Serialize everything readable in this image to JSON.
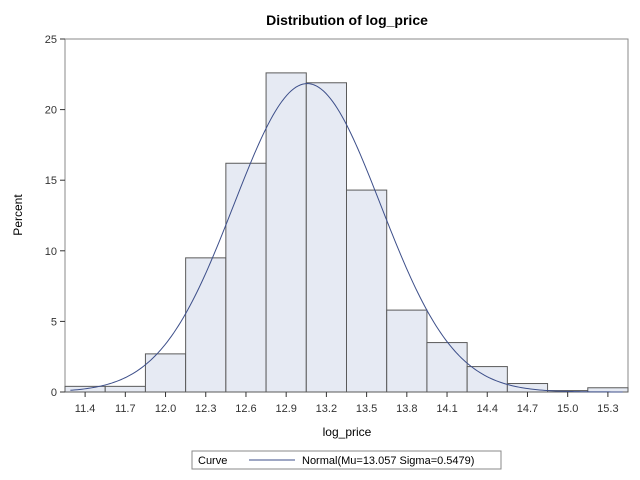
{
  "chart_data": {
    "type": "bar",
    "title": "Distribution of log_price",
    "xlabel": "log_price",
    "ylabel": "Percent",
    "bin_width": 0.3,
    "bins": [
      {
        "mid": 11.4,
        "percent": 0.4
      },
      {
        "mid": 11.7,
        "percent": 0.4
      },
      {
        "mid": 12.0,
        "percent": 2.7
      },
      {
        "mid": 12.3,
        "percent": 9.5
      },
      {
        "mid": 12.6,
        "percent": 16.2
      },
      {
        "mid": 12.9,
        "percent": 22.6
      },
      {
        "mid": 13.2,
        "percent": 21.9
      },
      {
        "mid": 13.5,
        "percent": 14.3
      },
      {
        "mid": 13.8,
        "percent": 5.8
      },
      {
        "mid": 14.1,
        "percent": 3.5
      },
      {
        "mid": 14.4,
        "percent": 1.8
      },
      {
        "mid": 14.7,
        "percent": 0.6
      },
      {
        "mid": 15.0,
        "percent": 0.1
      },
      {
        "mid": 15.3,
        "percent": 0.3
      }
    ],
    "x_ticks": [
      "11.4",
      "11.7",
      "12.0",
      "12.3",
      "12.6",
      "12.9",
      "13.2",
      "13.5",
      "13.8",
      "14.1",
      "14.4",
      "14.7",
      "15.0",
      "15.3"
    ],
    "xlim": [
      11.25,
      15.45
    ],
    "y_ticks": [
      0,
      5,
      10,
      15,
      20,
      25
    ],
    "ylim": [
      0,
      25
    ],
    "grid": false,
    "curve": {
      "type": "normal",
      "mu": 13.057,
      "sigma": 0.5479
    },
    "legend": {
      "placement": "bottom",
      "title": "Curve",
      "entries": [
        {
          "label": "Normal(Mu=13.057 Sigma=0.5479)"
        }
      ]
    },
    "colors": {
      "bar_fill": "#e6eaf3",
      "bar_edge": "#5a5a5a",
      "curve": "#3d4f8a",
      "frame": "#8a8a8a"
    }
  }
}
